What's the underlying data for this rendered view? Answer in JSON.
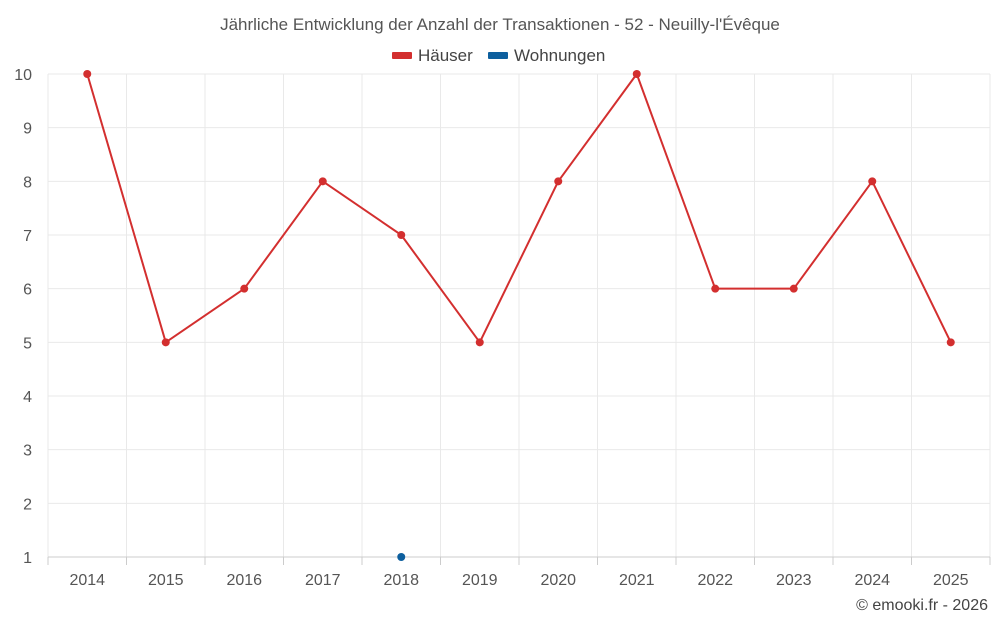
{
  "chart_data": {
    "type": "line",
    "title": "Jährliche Entwicklung der Anzahl der Transaktionen - 52 - Neuilly-l'Évêque",
    "x": [
      "2014",
      "2015",
      "2016",
      "2017",
      "2018",
      "2019",
      "2020",
      "2021",
      "2022",
      "2023",
      "2024",
      "2025"
    ],
    "ylim": [
      1,
      10
    ],
    "yticks": [
      "1",
      "2",
      "3",
      "4",
      "5",
      "6",
      "7",
      "8",
      "9",
      "10"
    ],
    "grid": true,
    "legend_position": "top-center",
    "series": [
      {
        "name": "Häuser",
        "color": "#d32f2f",
        "values": [
          10,
          5,
          6,
          8,
          7,
          5,
          8,
          10,
          6,
          6,
          8,
          5
        ]
      },
      {
        "name": "Wohnungen",
        "color": "#0d5f9e",
        "values": [
          null,
          null,
          null,
          null,
          1,
          null,
          null,
          null,
          null,
          null,
          null,
          null
        ]
      }
    ]
  },
  "credit": "© emooki.fr - 2026"
}
